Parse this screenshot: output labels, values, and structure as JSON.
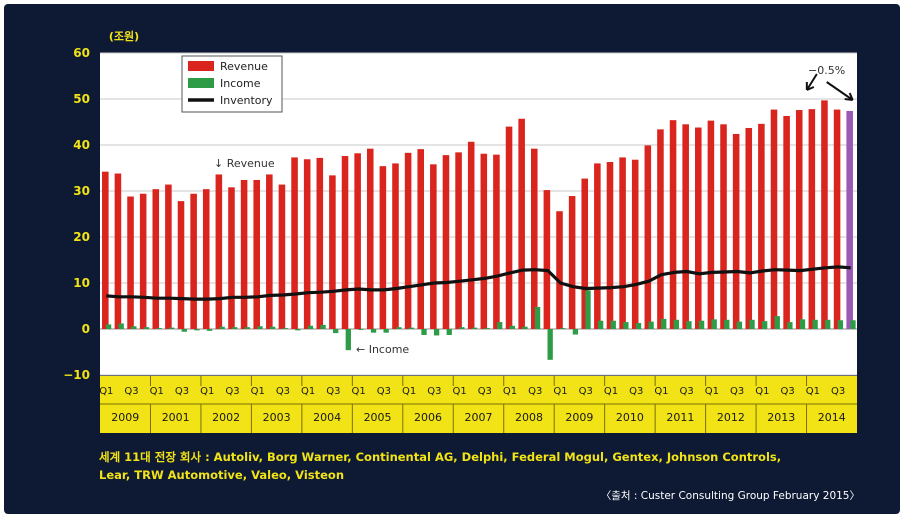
{
  "footer": {
    "companies": "세계 11대 전장 회사 : Autoliv, Borg Warner, Continental AG, Delphi, Federal Mogul, Gentex, Johnson Controls, Lear, TRW Automotive, Valeo, Visteon",
    "source": "〈출처 : Custer Consulting Group February 2015〉"
  },
  "colors": {
    "background": "#0e1a33",
    "revenue": "#d9251d",
    "income": "#2e9b47",
    "inventory": "#111111",
    "highlight_bar": "#9b59b6",
    "axis_text": "#f2e316",
    "axis_band": "#f2e316"
  },
  "chart_data": {
    "type": "bar",
    "title": "",
    "ylabel": "(조원)",
    "ylim": [
      -10,
      60
    ],
    "yticks": [
      "60",
      "50",
      "40",
      "30",
      "20",
      "10",
      "0",
      "−10"
    ],
    "grid": true,
    "legend_position": "top-left",
    "legend": [
      "Revenue",
      "Income",
      "Inventory"
    ],
    "x_tick_labels": [
      "Q1",
      "Q3",
      "Q1",
      "Q3",
      "Q1",
      "Q3",
      "Q1",
      "Q3",
      "Q1",
      "Q3",
      "Q1",
      "Q3",
      "Q1",
      "Q3",
      "Q1",
      "Q3",
      "Q1",
      "Q3",
      "Q1",
      "Q3",
      "Q1",
      "Q3",
      "Q1",
      "Q3",
      "Q1",
      "Q3",
      "Q1",
      "Q3",
      "Q1",
      "Q3"
    ],
    "year_labels": [
      "2009",
      "2001",
      "2002",
      "2003",
      "2004",
      "2005",
      "2006",
      "2007",
      "2008",
      "2009",
      "2010",
      "2011",
      "2012",
      "2013",
      "2014"
    ],
    "annotations": {
      "revenue": "↓ Revenue",
      "income": "← Income",
      "change": "−0.5%"
    },
    "series": [
      {
        "name": "Revenue",
        "type": "bar",
        "values": [
          34.2,
          33.8,
          28.8,
          29.4,
          30.4,
          31.4,
          27.8,
          29.4,
          30.4,
          33.6,
          30.8,
          32.4,
          32.4,
          33.6,
          31.4,
          37.3,
          36.9,
          37.2,
          33.4,
          37.6,
          38.2,
          39.2,
          35.4,
          36.0,
          38.3,
          39.1,
          35.8,
          37.8,
          38.4,
          40.7,
          38.1,
          37.9,
          44.0,
          45.7,
          39.2,
          30.2,
          25.6,
          28.9,
          32.7,
          36.0,
          36.3,
          37.3,
          36.8,
          39.9,
          43.4,
          45.4,
          44.5,
          43.8,
          45.3,
          44.5,
          42.4,
          43.7,
          44.6,
          47.7,
          46.3,
          47.6,
          47.8,
          49.7,
          47.7,
          47.4
        ]
      },
      {
        "name": "Income",
        "type": "bar",
        "values": [
          1.0,
          1.2,
          0.6,
          0.4,
          0.2,
          0.3,
          -0.6,
          -0.3,
          -0.4,
          0.5,
          0.4,
          0.4,
          0.6,
          0.5,
          0.2,
          -0.3,
          0.7,
          0.9,
          -0.9,
          -4.6,
          -0.2,
          -0.8,
          -0.8,
          0.4,
          0.3,
          -1.3,
          -1.4,
          -1.3,
          0.4,
          0.3,
          0.2,
          1.5,
          0.7,
          0.5,
          4.8,
          -6.7,
          0.2,
          -1.2,
          8.4,
          1.8,
          1.8,
          1.5,
          1.3,
          1.6,
          2.2,
          2.0,
          1.7,
          1.8,
          2.1,
          2.0,
          1.6,
          2.0,
          1.7,
          2.8,
          1.5,
          2.1,
          2.0,
          2.0,
          1.9,
          1.9
        ]
      },
      {
        "name": "Inventory",
        "type": "line",
        "values": [
          7.2,
          7.0,
          7.0,
          6.9,
          6.7,
          6.7,
          6.6,
          6.5,
          6.5,
          6.6,
          6.9,
          6.9,
          7.0,
          7.3,
          7.4,
          7.6,
          7.9,
          8.0,
          8.2,
          8.5,
          8.7,
          8.5,
          8.5,
          8.8,
          9.2,
          9.6,
          10.0,
          10.1,
          10.4,
          10.7,
          11.0,
          11.5,
          12.2,
          12.8,
          12.9,
          12.7,
          10.0,
          9.2,
          8.8,
          8.9,
          9.0,
          9.2,
          9.7,
          10.4,
          11.8,
          12.3,
          12.5,
          12.0,
          12.3,
          12.4,
          12.5,
          12.2,
          12.6,
          12.9,
          12.8,
          12.7,
          13.0,
          13.3,
          13.5,
          13.3
        ]
      }
    ]
  }
}
